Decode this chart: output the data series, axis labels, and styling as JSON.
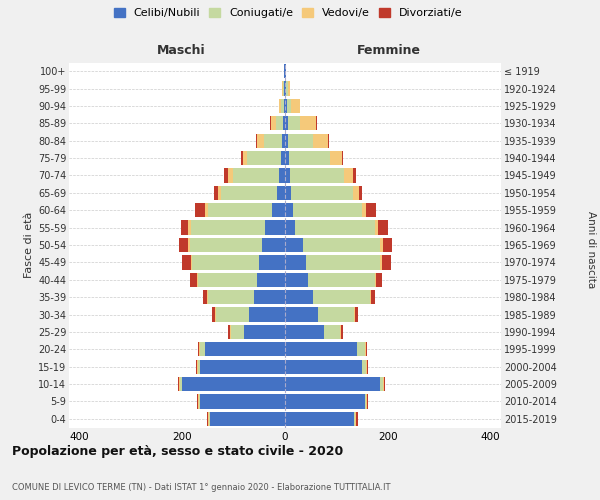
{
  "age_groups_bottom_to_top": [
    "0-4",
    "5-9",
    "10-14",
    "15-19",
    "20-24",
    "25-29",
    "30-34",
    "35-39",
    "40-44",
    "45-49",
    "50-54",
    "55-59",
    "60-64",
    "65-69",
    "70-74",
    "75-79",
    "80-84",
    "85-89",
    "90-94",
    "95-99",
    "100+"
  ],
  "birth_years_bottom_to_top": [
    "2015-2019",
    "2010-2014",
    "2005-2009",
    "2000-2004",
    "1995-1999",
    "1990-1994",
    "1985-1989",
    "1980-1984",
    "1975-1979",
    "1970-1974",
    "1965-1969",
    "1960-1964",
    "1955-1959",
    "1950-1954",
    "1945-1949",
    "1940-1944",
    "1935-1939",
    "1930-1934",
    "1925-1929",
    "1920-1924",
    "≤ 1919"
  ],
  "colors": {
    "celibi": "#4472c4",
    "coniugati": "#c5d9a0",
    "vedovi": "#f5c97a",
    "divorziati": "#c0392b"
  },
  "maschi_bottom_to_top": {
    "celibi": [
      145,
      165,
      200,
      165,
      155,
      80,
      70,
      60,
      55,
      50,
      45,
      38,
      25,
      15,
      12,
      8,
      5,
      3,
      2,
      2,
      1
    ],
    "coniugati": [
      2,
      2,
      5,
      5,
      10,
      25,
      65,
      90,
      115,
      130,
      140,
      145,
      125,
      110,
      90,
      65,
      35,
      15,
      5,
      2,
      0
    ],
    "vedovi": [
      2,
      2,
      2,
      2,
      2,
      2,
      2,
      2,
      2,
      3,
      3,
      5,
      5,
      5,
      8,
      8,
      15,
      10,
      5,
      2,
      0
    ],
    "divorziati": [
      2,
      2,
      2,
      2,
      2,
      3,
      5,
      8,
      12,
      18,
      18,
      15,
      20,
      8,
      8,
      5,
      2,
      2,
      0,
      0,
      0
    ]
  },
  "femmine_bottom_to_top": {
    "celibi": [
      135,
      155,
      185,
      150,
      140,
      75,
      65,
      55,
      45,
      40,
      35,
      20,
      15,
      12,
      10,
      8,
      5,
      5,
      3,
      2,
      1
    ],
    "coniugati": [
      2,
      2,
      5,
      8,
      15,
      32,
      70,
      110,
      130,
      145,
      150,
      155,
      135,
      120,
      105,
      80,
      50,
      25,
      8,
      3,
      0
    ],
    "vedovi": [
      2,
      2,
      2,
      2,
      2,
      2,
      2,
      2,
      2,
      3,
      5,
      5,
      8,
      12,
      18,
      22,
      28,
      30,
      18,
      5,
      1
    ],
    "divorziati": [
      2,
      2,
      2,
      2,
      2,
      3,
      5,
      8,
      12,
      18,
      18,
      20,
      18,
      5,
      5,
      2,
      2,
      2,
      0,
      0,
      0
    ]
  },
  "title": "Popolazione per età, sesso e stato civile - 2020",
  "subtitle": "COMUNE DI LEVICO TERME (TN) - Dati ISTAT 1° gennaio 2020 - Elaborazione TUTTITALIA.IT",
  "xlabel_maschi": "Maschi",
  "xlabel_femmine": "Femmine",
  "ylabel": "Fasce di età",
  "ylabel_right": "Anni di nascita",
  "xlim": 420,
  "legend_labels": [
    "Celibi/Nubili",
    "Coniugati/e",
    "Vedovi/e",
    "Divorziati/e"
  ],
  "bg_color": "#f0f0f0",
  "plot_bg": "#ffffff"
}
